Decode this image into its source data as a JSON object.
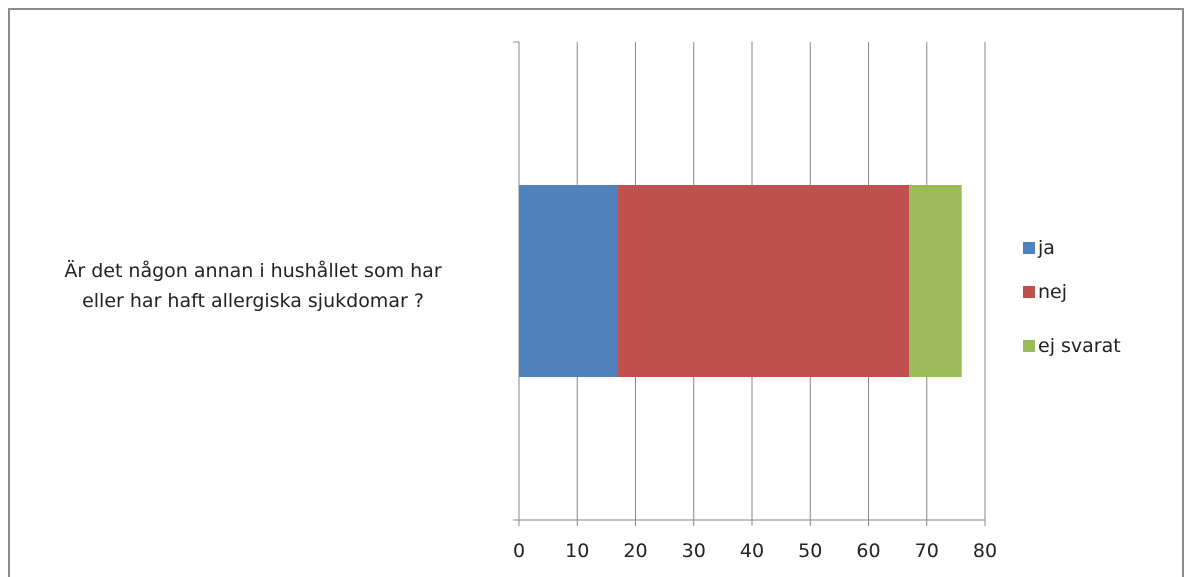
{
  "chart_data": {
    "type": "bar",
    "orientation": "horizontal",
    "stacked": true,
    "categories": [
      "Är det någon annan i hushållet som har eller har haft allergiska sjukdomar ?"
    ],
    "category_lines": [
      "Är det någon annan i hushållet som har",
      "eller har haft allergiska sjukdomar ?"
    ],
    "series": [
      {
        "name": "ja",
        "values": [
          17
        ],
        "color": "#4f81bd"
      },
      {
        "name": "nej",
        "values": [
          50
        ],
        "color": "#c0504d"
      },
      {
        "name": "ej svarat",
        "values": [
          9
        ],
        "color": "#9bbb59"
      }
    ],
    "xlim": [
      0,
      80
    ],
    "xticks": [
      "0",
      "10",
      "20",
      "30",
      "40",
      "50",
      "60",
      "70",
      "80"
    ],
    "grid": true,
    "legend": "right",
    "title": "",
    "xlabel": "",
    "ylabel": ""
  }
}
